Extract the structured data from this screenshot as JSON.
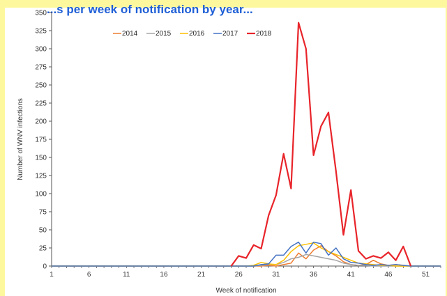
{
  "header": {
    "text": "...s per week of notification by year..."
  },
  "chart_data": {
    "type": "line",
    "xlabel": "Week of notification",
    "ylabel": "Number of WNV infections",
    "xlim": [
      1,
      53
    ],
    "ylim": [
      0,
      350
    ],
    "x_ticks": [
      1,
      6,
      11,
      16,
      21,
      26,
      31,
      36,
      41,
      46,
      51
    ],
    "y_ticks": [
      0,
      25,
      50,
      75,
      100,
      125,
      150,
      175,
      200,
      225,
      250,
      275,
      300,
      325,
      350
    ],
    "legend_position": "top-left",
    "grid": false,
    "x": [
      1,
      2,
      3,
      4,
      5,
      6,
      7,
      8,
      9,
      10,
      11,
      12,
      13,
      14,
      15,
      16,
      17,
      18,
      19,
      20,
      21,
      22,
      23,
      24,
      25,
      26,
      27,
      28,
      29,
      30,
      31,
      32,
      33,
      34,
      35,
      36,
      37,
      38,
      39,
      40,
      41,
      42,
      43,
      44,
      45,
      46,
      47,
      48,
      49,
      50,
      51,
      52,
      53
    ],
    "series": [
      {
        "name": "2014",
        "color": "#ed7d31",
        "values": [
          0,
          0,
          0,
          0,
          0,
          0,
          0,
          0,
          0,
          0,
          0,
          0,
          0,
          0,
          0,
          0,
          0,
          0,
          0,
          0,
          0,
          0,
          0,
          0,
          0,
          0,
          0,
          0,
          0,
          1,
          0,
          2,
          4,
          18,
          10,
          22,
          28,
          20,
          14,
          6,
          2,
          1,
          2,
          8,
          3,
          1,
          2,
          1,
          0,
          0,
          0,
          0,
          0
        ]
      },
      {
        "name": "2015",
        "color": "#a5a5a5",
        "values": [
          0,
          0,
          0,
          0,
          0,
          0,
          0,
          0,
          0,
          0,
          0,
          0,
          0,
          0,
          0,
          0,
          0,
          0,
          0,
          0,
          0,
          0,
          0,
          0,
          0,
          0,
          0,
          0,
          1,
          2,
          2,
          5,
          10,
          12,
          16,
          14,
          12,
          10,
          8,
          4,
          2,
          1,
          1,
          0,
          0,
          0,
          0,
          0,
          0,
          0,
          0,
          0,
          0
        ]
      },
      {
        "name": "2016",
        "color": "#ffc000",
        "values": [
          0,
          0,
          0,
          0,
          0,
          0,
          0,
          0,
          0,
          0,
          0,
          0,
          0,
          0,
          0,
          0,
          0,
          0,
          0,
          0,
          0,
          0,
          0,
          0,
          0,
          0,
          0,
          1,
          5,
          3,
          2,
          8,
          20,
          28,
          30,
          32,
          25,
          20,
          16,
          12,
          8,
          4,
          3,
          2,
          1,
          1,
          0,
          0,
          0,
          0,
          0,
          0,
          0
        ]
      },
      {
        "name": "2017",
        "color": "#4472c4",
        "values": [
          0,
          0,
          0,
          0,
          0,
          0,
          0,
          0,
          0,
          0,
          0,
          0,
          0,
          0,
          0,
          0,
          0,
          0,
          0,
          0,
          0,
          0,
          0,
          0,
          0,
          0,
          0,
          0,
          2,
          3,
          15,
          15,
          27,
          33,
          18,
          33,
          31,
          15,
          25,
          10,
          5,
          4,
          2,
          1,
          2,
          1,
          2,
          1,
          0,
          0,
          0,
          0,
          0
        ]
      },
      {
        "name": "2018",
        "color": "#e8242a",
        "values": [
          null,
          null,
          null,
          null,
          null,
          null,
          null,
          null,
          null,
          null,
          null,
          null,
          null,
          null,
          null,
          null,
          null,
          null,
          null,
          null,
          null,
          null,
          null,
          null,
          0,
          14,
          11,
          29,
          24,
          70,
          98,
          155,
          107,
          336,
          300,
          153,
          193,
          212,
          131,
          43,
          105,
          21,
          10,
          14,
          11,
          19,
          8,
          27,
          0,
          null,
          null,
          null,
          null
        ]
      }
    ]
  }
}
